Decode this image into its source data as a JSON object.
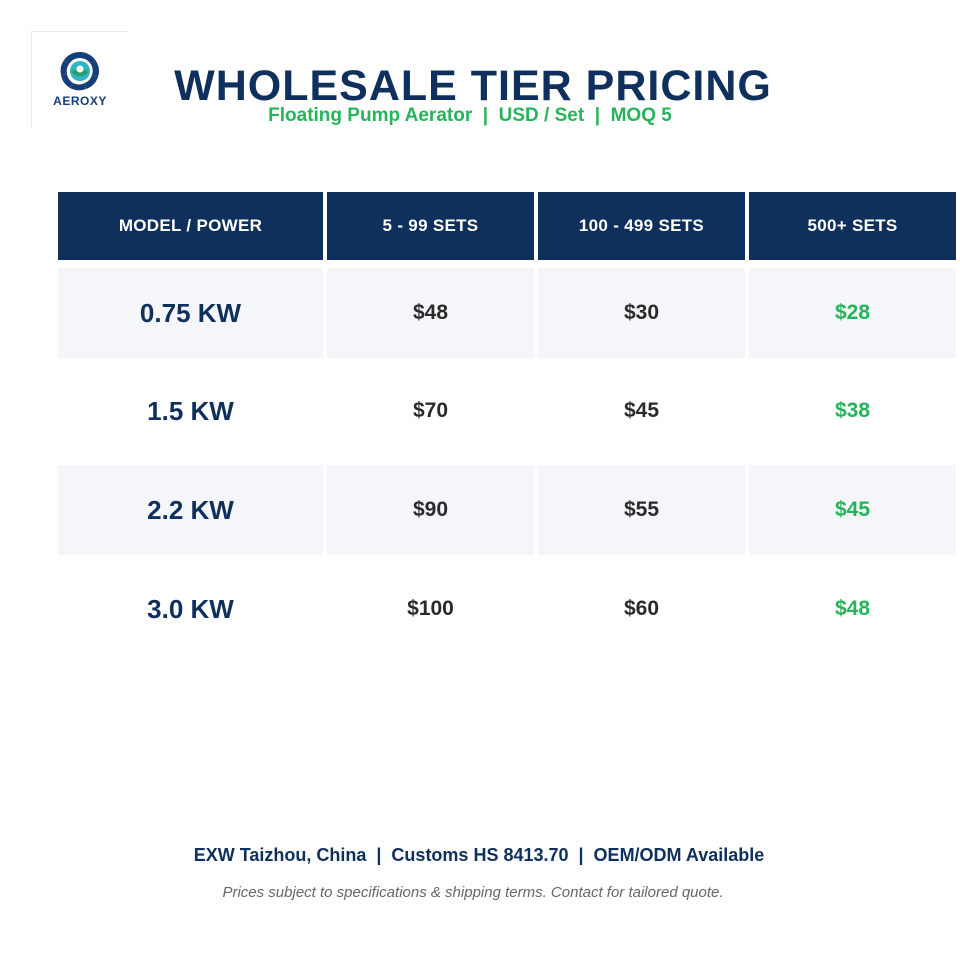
{
  "brand": {
    "logo_text": "AEROXY",
    "logo_icon": "aerator-turbine-icon",
    "colors": {
      "navy": "#0f2f5c",
      "green": "#27b35a",
      "row_shade": "#f4f6f9"
    }
  },
  "header": {
    "title": "WHOLESALE TIER PRICING",
    "subtitle": "Floating Pump Aerator  |  USD / Set  |  MOQ 5"
  },
  "table": {
    "columns": [
      "MODEL / POWER",
      "5 - 99 SETS",
      "100 - 499 SETS",
      "500+ SETS"
    ],
    "rows": [
      {
        "model": "0.75 KW",
        "tier1": "$48",
        "tier2": "$30",
        "tier3": "$28"
      },
      {
        "model": "1.5 KW",
        "tier1": "$70",
        "tier2": "$45",
        "tier3": "$38"
      },
      {
        "model": "2.2 KW",
        "tier1": "$90",
        "tier2": "$55",
        "tier3": "$45"
      },
      {
        "model": "3.0 KW",
        "tier1": "$100",
        "tier2": "$60",
        "tier3": "$48"
      }
    ]
  },
  "footer": {
    "terms": "EXW Taizhou, China  |  Customs HS 8413.70  |  OEM/ODM Available",
    "note": "Prices subject to specifications & shipping terms. Contact for tailored quote."
  }
}
